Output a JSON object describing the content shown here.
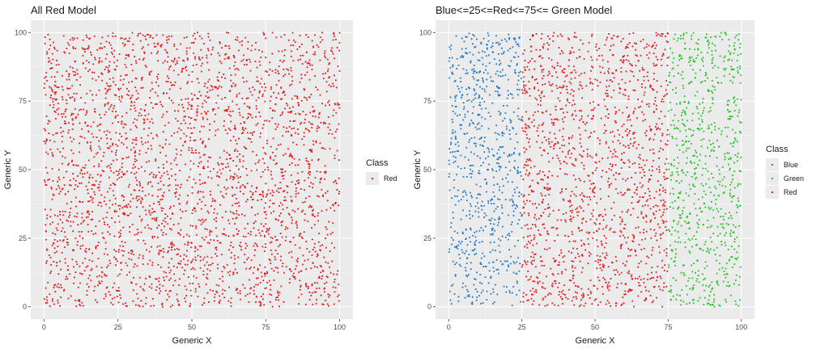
{
  "chart_data": [
    {
      "type": "scatter",
      "title": "All Red Model",
      "xlabel": "Generic X",
      "ylabel": "Generic Y",
      "xlim": [
        0,
        100
      ],
      "ylim": [
        0,
        100
      ],
      "xticks": [
        "0",
        "25",
        "50",
        "75",
        "100"
      ],
      "yticks": [
        "0",
        "25",
        "50",
        "75",
        "100"
      ],
      "grid": true,
      "legend": {
        "title": "Class",
        "position": "right",
        "entries": [
          {
            "label": "Red",
            "color": "#e41a1c"
          }
        ]
      },
      "series": [
        {
          "name": "Red",
          "color": "#e41a1c",
          "x_range": [
            0,
            100
          ],
          "y_range": [
            0,
            100
          ],
          "count": 3000
        }
      ]
    },
    {
      "type": "scatter",
      "title": "Blue<=25<=Red<=75<= Green Model",
      "xlabel": "Generic X",
      "ylabel": "Generic Y",
      "xlim": [
        0,
        100
      ],
      "ylim": [
        0,
        100
      ],
      "xticks": [
        "0",
        "25",
        "50",
        "75",
        "100"
      ],
      "yticks": [
        "0",
        "25",
        "50",
        "75",
        "100"
      ],
      "grid": true,
      "legend": {
        "title": "Class",
        "position": "right",
        "entries": [
          {
            "label": "Blue",
            "color": "#1f78c8"
          },
          {
            "label": "Green",
            "color": "#1fc41f"
          },
          {
            "label": "Red",
            "color": "#e41a1c"
          }
        ]
      },
      "series": [
        {
          "name": "Blue",
          "color": "#1f78c8",
          "x_range": [
            0,
            25
          ],
          "y_range": [
            0,
            100
          ],
          "count": 750
        },
        {
          "name": "Red",
          "color": "#e41a1c",
          "x_range": [
            25,
            75
          ],
          "y_range": [
            0,
            100
          ],
          "count": 1500
        },
        {
          "name": "Green",
          "color": "#1fc41f",
          "x_range": [
            75,
            100
          ],
          "y_range": [
            0,
            100
          ],
          "count": 750
        }
      ]
    }
  ]
}
